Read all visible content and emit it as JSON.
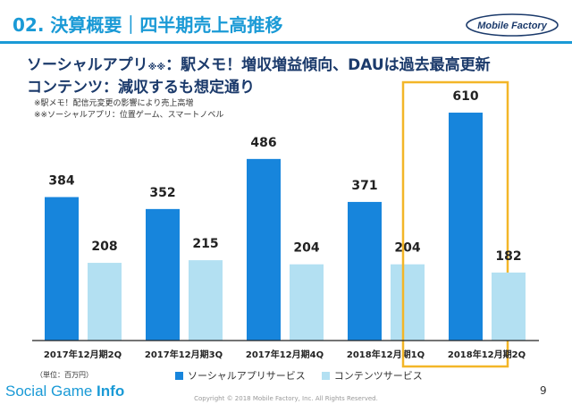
{
  "header": {
    "number": "02.",
    "title": "決算概要｜四半期売上高推移",
    "logo_text": "Mobile Factory"
  },
  "headline": {
    "line1_main": "ソーシャルアプリ",
    "line1_sup": "※※",
    "line1_rest": "：駅メモ！増収増益傾向、DAUは過去最高更新",
    "line2": "コンテンツ：減収するも想定通り"
  },
  "notes": [
    "※駅メモ！配信元変更の影響により売上高増",
    "※※ソーシャルアプリ：位置ゲーム、スマートノベル"
  ],
  "unit_note": "（単位：百万円）",
  "colors": {
    "accent": "#1a9ad6",
    "social": "#1785dc",
    "content": "#b3e0f2",
    "highlight": "#f3b628",
    "axis": "#222222"
  },
  "chart_data": {
    "type": "bar",
    "categories": [
      "2017年12月期2Q",
      "2017年12月期3Q",
      "2017年12月期4Q",
      "2018年12月期1Q",
      "2018年12月期2Q"
    ],
    "series": [
      {
        "name": "ソーシャルアプリサービス",
        "values": [
          384,
          352,
          486,
          371,
          610
        ]
      },
      {
        "name": "コンテンツサービス",
        "values": [
          208,
          215,
          204,
          204,
          182
        ]
      }
    ],
    "highlight_category": "2018年12月期2Q",
    "legend_position": "bottom",
    "grid": false
  },
  "footer": {
    "brand_regular": "Social Game ",
    "brand_bold": "Info",
    "copyright": "Copyright © 2018 Mobile Factory, Inc. All Rights Reserved.",
    "page": "9"
  }
}
